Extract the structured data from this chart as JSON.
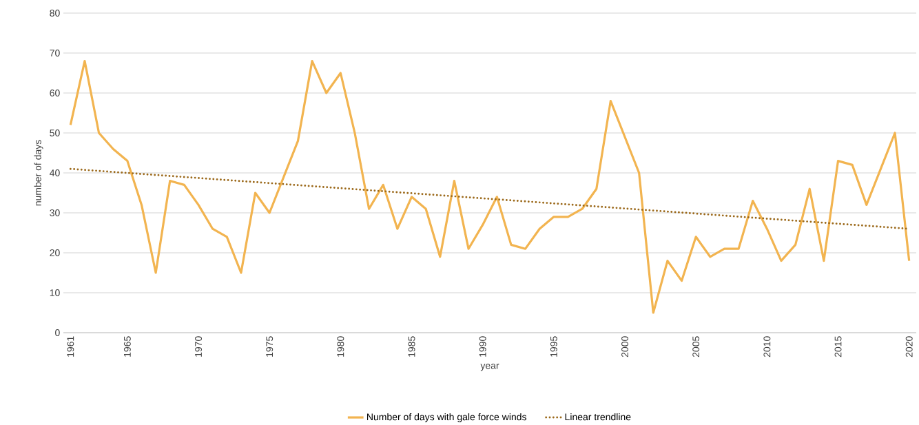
{
  "chart_data": {
    "type": "line",
    "xlabel": "year",
    "ylabel": "number of days",
    "x": [
      1961,
      1962,
      1963,
      1964,
      1965,
      1966,
      1967,
      1968,
      1969,
      1970,
      1971,
      1972,
      1973,
      1974,
      1975,
      1976,
      1977,
      1978,
      1979,
      1980,
      1981,
      1982,
      1983,
      1984,
      1985,
      1986,
      1987,
      1988,
      1989,
      1990,
      1991,
      1992,
      1993,
      1994,
      1995,
      1996,
      1997,
      1998,
      1999,
      2000,
      2001,
      2002,
      2003,
      2004,
      2005,
      2006,
      2007,
      2008,
      2009,
      2010,
      2011,
      2012,
      2013,
      2014,
      2015,
      2016,
      2017,
      2018,
      2019,
      2020
    ],
    "series": [
      {
        "name": "Number of days with gale force winds",
        "color": "#f2b450",
        "line_style": "solid",
        "values": [
          52,
          68,
          50,
          46,
          43,
          32,
          15,
          38,
          37,
          32,
          26,
          24,
          15,
          35,
          30,
          39,
          48,
          68,
          60,
          65,
          50,
          31,
          37,
          26,
          34,
          31,
          19,
          38,
          21,
          27,
          34,
          22,
          21,
          26,
          29,
          29,
          31,
          36,
          58,
          49,
          40,
          5,
          18,
          13,
          24,
          19,
          21,
          21,
          33,
          26,
          18,
          22,
          36,
          18,
          43,
          42,
          32,
          41,
          50,
          18
        ]
      },
      {
        "name": "Linear trendline",
        "color": "#9c6a1c",
        "line_style": "dotted",
        "x": [
          1961,
          2020
        ],
        "values": [
          41,
          26
        ]
      }
    ],
    "xlim": [
      1960.5,
      2020.5
    ],
    "xticks": [
      1961,
      1965,
      1970,
      1975,
      1980,
      1985,
      1990,
      1995,
      2000,
      2005,
      2010,
      2015,
      2020
    ],
    "ylim": [
      0,
      80
    ],
    "yticks": [
      0,
      10,
      20,
      30,
      40,
      50,
      60,
      70,
      80
    ],
    "grid": "y",
    "legend": "bottom",
    "marker": "none"
  }
}
